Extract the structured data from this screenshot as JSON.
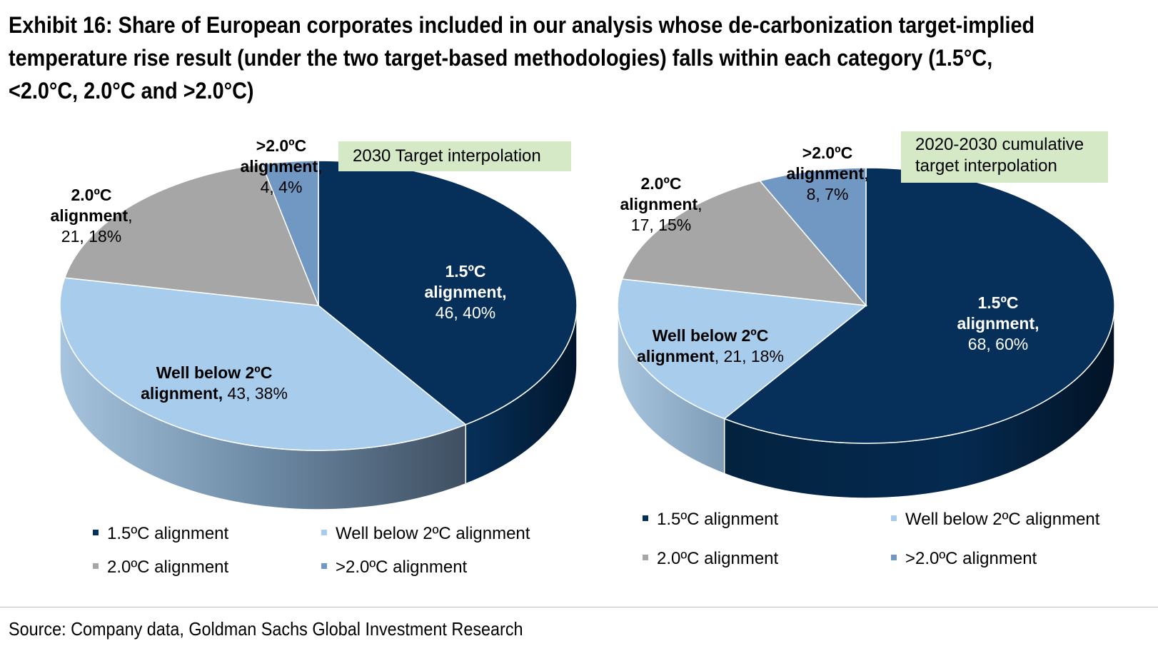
{
  "title_lines": [
    "Exhibit 16: Share of European corporates included in our analysis whose de-carbonization target-implied",
    "temperature rise result (under the two target-based methodologies) falls within each category (1.5°C,",
    "<2.0°C, 2.0°C and >2.0°C)"
  ],
  "source": "Source: Company data, Goldman Sachs Global Investment Research",
  "colors": {
    "c15": "#06305a",
    "wb2": "#a7ccec",
    "c20": "#a6a6a6",
    "gt2": "#7197c3",
    "tag_bg": "#d6e9c6"
  },
  "chart_data": [
    {
      "type": "pie",
      "title": "2030 Target interpolation",
      "categories": [
        "1.5ºC alignment",
        "Well below 2ºC alignment",
        "2.0ºC alignment",
        ">2.0ºC alignment"
      ],
      "values": [
        46,
        43,
        21,
        4
      ],
      "percents": [
        40,
        38,
        18,
        4
      ],
      "labels": [
        {
          "bold": [
            "1.5ºC",
            "alignment,"
          ],
          "plain": "46, 40%"
        },
        {
          "bold": [
            "Well below 2ºC",
            "alignment,"
          ],
          "plain": "43, 38%"
        },
        {
          "bold": [
            "2.0ºC",
            "alignment,"
          ],
          "plain": "21, 18%"
        },
        {
          "bold": [
            ">2.0ºC",
            "alignment,"
          ],
          "plain": "4, 4%"
        }
      ],
      "legend": [
        "1.5ºC alignment",
        "Well below 2ºC alignment",
        "2.0ºC alignment",
        ">2.0ºC alignment"
      ]
    },
    {
      "type": "pie",
      "title": "2020-2030 cumulative target interpolation",
      "title_lines": [
        "2020-2030 cumulative",
        "target interpolation"
      ],
      "categories": [
        "1.5ºC alignment",
        "Well below 2ºC alignment",
        "2.0ºC alignment",
        ">2.0ºC alignment"
      ],
      "values": [
        68,
        21,
        17,
        8
      ],
      "percents": [
        60,
        18,
        15,
        7
      ],
      "labels": [
        {
          "bold": [
            "1.5ºC",
            "alignment,"
          ],
          "plain": "68, 60%"
        },
        {
          "bold": [
            "Well below 2ºC",
            "alignment,"
          ],
          "plain": "21, 18%"
        },
        {
          "bold": [
            "2.0ºC",
            "alignment,"
          ],
          "plain": "17, 15%"
        },
        {
          "bold": [
            ">2.0ºC",
            "alignment,"
          ],
          "plain": "8, 7%"
        }
      ],
      "legend": [
        "1.5ºC alignment",
        "Well below 2ºC alignment",
        "2.0ºC alignment",
        ">2.0ºC alignment"
      ]
    }
  ]
}
